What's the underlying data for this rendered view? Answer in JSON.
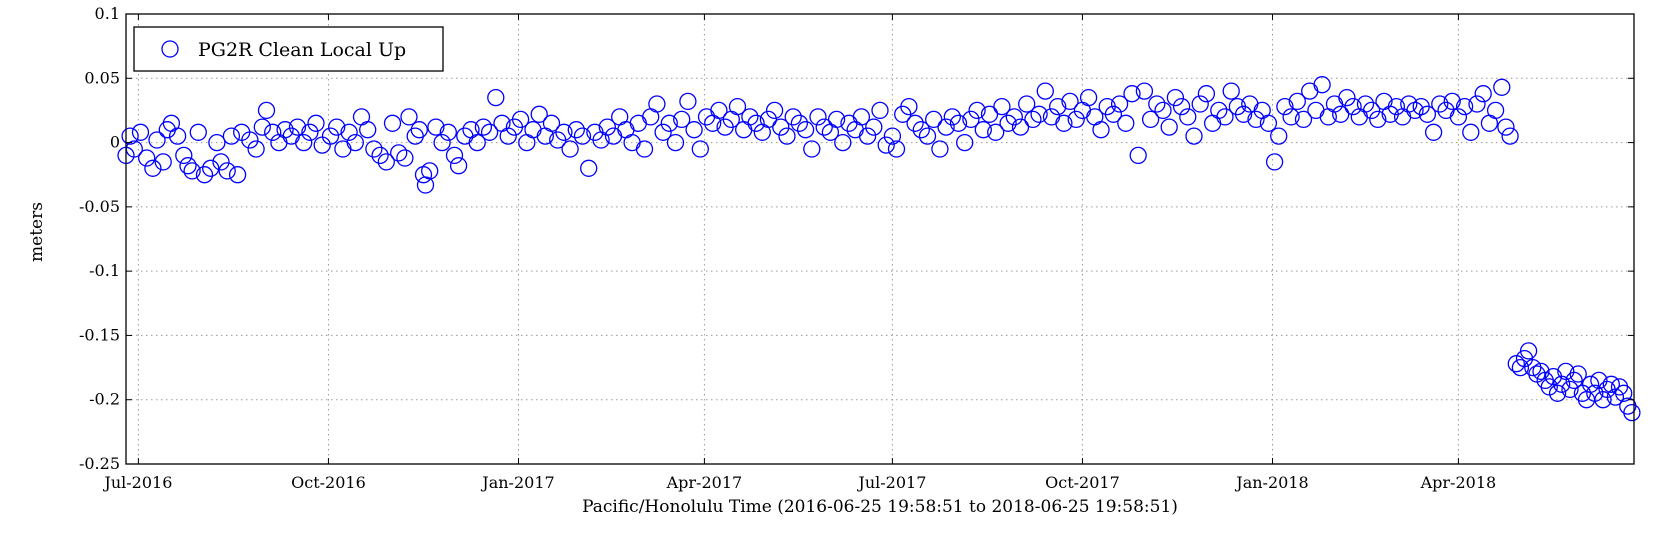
{
  "chart_data": {
    "type": "scatter",
    "title": "",
    "xlabel": "Pacific/Honolulu Time (2016-06-25 19:58:51 to 2018-06-25 19:58:51)",
    "ylabel": "meters",
    "xlim": [
      "2016-06-25",
      "2018-06-25"
    ],
    "ylim": [
      -0.25,
      0.1
    ],
    "x_ticks": [
      "2016-07-01",
      "2016-10-01",
      "2017-01-01",
      "2017-04-01",
      "2017-07-01",
      "2017-10-01",
      "2018-01-01",
      "2018-04-01"
    ],
    "x_tick_labels": [
      "Jul-2016",
      "Oct-2016",
      "Jan-2017",
      "Apr-2017",
      "Jul-2017",
      "Oct-2017",
      "Jan-2018",
      "Apr-2018"
    ],
    "y_ticks": [
      -0.25,
      -0.2,
      -0.15,
      -0.1,
      -0.05,
      0,
      0.05,
      0.1
    ],
    "y_tick_labels": [
      "-0.25",
      "-0.2",
      "-0.15",
      "-0.1",
      "-0.05",
      "0",
      "0.05",
      "0.1"
    ],
    "grid": true,
    "legend": {
      "position": "top-left",
      "entries": [
        "PG2R Clean Local Up"
      ]
    },
    "colors": {
      "series": "#0000ff"
    },
    "series": [
      {
        "name": "PG2R Clean Local Up",
        "marker": "circle-open",
        "points": [
          [
            "2016-06-25",
            -0.01
          ],
          [
            "2016-06-27",
            0.005
          ],
          [
            "2016-06-29",
            -0.005
          ],
          [
            "2016-07-02",
            0.008
          ],
          [
            "2016-07-05",
            -0.012
          ],
          [
            "2016-07-08",
            -0.02
          ],
          [
            "2016-07-10",
            0.002
          ],
          [
            "2016-07-13",
            -0.015
          ],
          [
            "2016-07-15",
            0.01
          ],
          [
            "2016-07-17",
            0.015
          ],
          [
            "2016-07-20",
            0.005
          ],
          [
            "2016-07-23",
            -0.01
          ],
          [
            "2016-07-25",
            -0.018
          ],
          [
            "2016-07-27",
            -0.022
          ],
          [
            "2016-07-30",
            0.008
          ],
          [
            "2016-08-02",
            -0.025
          ],
          [
            "2016-08-05",
            -0.02
          ],
          [
            "2016-08-08",
            0.0
          ],
          [
            "2016-08-10",
            -0.015
          ],
          [
            "2016-08-13",
            -0.022
          ],
          [
            "2016-08-15",
            0.005
          ],
          [
            "2016-08-18",
            -0.025
          ],
          [
            "2016-08-20",
            0.008
          ],
          [
            "2016-08-24",
            0.002
          ],
          [
            "2016-08-27",
            -0.005
          ],
          [
            "2016-08-30",
            0.012
          ],
          [
            "2016-09-01",
            0.025
          ],
          [
            "2016-09-04",
            0.008
          ],
          [
            "2016-09-07",
            0.0
          ],
          [
            "2016-09-10",
            0.01
          ],
          [
            "2016-09-13",
            0.005
          ],
          [
            "2016-09-16",
            0.012
          ],
          [
            "2016-09-19",
            0.0
          ],
          [
            "2016-09-22",
            0.008
          ],
          [
            "2016-09-25",
            0.015
          ],
          [
            "2016-09-28",
            -0.002
          ],
          [
            "2016-10-02",
            0.005
          ],
          [
            "2016-10-05",
            0.012
          ],
          [
            "2016-10-08",
            -0.005
          ],
          [
            "2016-10-11",
            0.008
          ],
          [
            "2016-10-14",
            0.0
          ],
          [
            "2016-10-17",
            0.02
          ],
          [
            "2016-10-20",
            0.01
          ],
          [
            "2016-10-23",
            -0.005
          ],
          [
            "2016-10-26",
            -0.01
          ],
          [
            "2016-10-29",
            -0.015
          ],
          [
            "2016-11-01",
            0.015
          ],
          [
            "2016-11-04",
            -0.008
          ],
          [
            "2016-11-07",
            -0.012
          ],
          [
            "2016-11-09",
            0.02
          ],
          [
            "2016-11-12",
            0.005
          ],
          [
            "2016-11-14",
            0.01
          ],
          [
            "2016-11-16",
            -0.025
          ],
          [
            "2016-11-17",
            -0.033
          ],
          [
            "2016-11-19",
            -0.022
          ],
          [
            "2016-11-22",
            0.012
          ],
          [
            "2016-11-25",
            0.0
          ],
          [
            "2016-11-28",
            0.008
          ],
          [
            "2016-12-01",
            -0.01
          ],
          [
            "2016-12-03",
            -0.018
          ],
          [
            "2016-12-06",
            0.005
          ],
          [
            "2016-12-09",
            0.01
          ],
          [
            "2016-12-12",
            0.0
          ],
          [
            "2016-12-15",
            0.012
          ],
          [
            "2016-12-18",
            0.008
          ],
          [
            "2016-12-21",
            0.035
          ],
          [
            "2016-12-24",
            0.015
          ],
          [
            "2016-12-27",
            0.005
          ],
          [
            "2016-12-30",
            0.012
          ],
          [
            "2017-01-02",
            0.018
          ],
          [
            "2017-01-05",
            0.0
          ],
          [
            "2017-01-08",
            0.01
          ],
          [
            "2017-01-11",
            0.022
          ],
          [
            "2017-01-14",
            0.005
          ],
          [
            "2017-01-17",
            0.015
          ],
          [
            "2017-01-20",
            0.002
          ],
          [
            "2017-01-23",
            0.008
          ],
          [
            "2017-01-26",
            -0.005
          ],
          [
            "2017-01-29",
            0.01
          ],
          [
            "2017-02-01",
            0.005
          ],
          [
            "2017-02-04",
            -0.02
          ],
          [
            "2017-02-07",
            0.008
          ],
          [
            "2017-02-10",
            0.002
          ],
          [
            "2017-02-13",
            0.012
          ],
          [
            "2017-02-16",
            0.005
          ],
          [
            "2017-02-19",
            0.02
          ],
          [
            "2017-02-22",
            0.01
          ],
          [
            "2017-02-25",
            0.0
          ],
          [
            "2017-02-28",
            0.015
          ],
          [
            "2017-03-03",
            -0.005
          ],
          [
            "2017-03-06",
            0.02
          ],
          [
            "2017-03-09",
            0.03
          ],
          [
            "2017-03-12",
            0.008
          ],
          [
            "2017-03-15",
            0.015
          ],
          [
            "2017-03-18",
            0.0
          ],
          [
            "2017-03-21",
            0.018
          ],
          [
            "2017-03-24",
            0.032
          ],
          [
            "2017-03-27",
            0.01
          ],
          [
            "2017-03-30",
            -0.005
          ],
          [
            "2017-04-02",
            0.02
          ],
          [
            "2017-04-05",
            0.015
          ],
          [
            "2017-04-08",
            0.025
          ],
          [
            "2017-04-11",
            0.012
          ],
          [
            "2017-04-14",
            0.018
          ],
          [
            "2017-04-17",
            0.028
          ],
          [
            "2017-04-20",
            0.01
          ],
          [
            "2017-04-23",
            0.02
          ],
          [
            "2017-04-26",
            0.015
          ],
          [
            "2017-04-29",
            0.008
          ],
          [
            "2017-05-02",
            0.018
          ],
          [
            "2017-05-05",
            0.025
          ],
          [
            "2017-05-08",
            0.012
          ],
          [
            "2017-05-11",
            0.005
          ],
          [
            "2017-05-14",
            0.02
          ],
          [
            "2017-05-17",
            0.015
          ],
          [
            "2017-05-20",
            0.01
          ],
          [
            "2017-05-23",
            -0.005
          ],
          [
            "2017-05-26",
            0.02
          ],
          [
            "2017-05-29",
            0.012
          ],
          [
            "2017-06-01",
            0.008
          ],
          [
            "2017-06-04",
            0.018
          ],
          [
            "2017-06-07",
            0.0
          ],
          [
            "2017-06-10",
            0.015
          ],
          [
            "2017-06-13",
            0.01
          ],
          [
            "2017-06-16",
            0.02
          ],
          [
            "2017-06-19",
            0.005
          ],
          [
            "2017-06-22",
            0.012
          ],
          [
            "2017-06-25",
            0.025
          ],
          [
            "2017-06-28",
            -0.002
          ],
          [
            "2017-07-01",
            0.005
          ],
          [
            "2017-07-03",
            -0.005
          ],
          [
            "2017-07-06",
            0.022
          ],
          [
            "2017-07-09",
            0.028
          ],
          [
            "2017-07-12",
            0.015
          ],
          [
            "2017-07-15",
            0.01
          ],
          [
            "2017-07-18",
            0.005
          ],
          [
            "2017-07-21",
            0.018
          ],
          [
            "2017-07-24",
            -0.005
          ],
          [
            "2017-07-27",
            0.012
          ],
          [
            "2017-07-30",
            0.02
          ],
          [
            "2017-08-02",
            0.015
          ],
          [
            "2017-08-05",
            0.0
          ],
          [
            "2017-08-08",
            0.018
          ],
          [
            "2017-08-11",
            0.025
          ],
          [
            "2017-08-14",
            0.01
          ],
          [
            "2017-08-17",
            0.022
          ],
          [
            "2017-08-20",
            0.008
          ],
          [
            "2017-08-23",
            0.028
          ],
          [
            "2017-08-26",
            0.015
          ],
          [
            "2017-08-29",
            0.02
          ],
          [
            "2017-09-01",
            0.012
          ],
          [
            "2017-09-04",
            0.03
          ],
          [
            "2017-09-07",
            0.018
          ],
          [
            "2017-09-10",
            0.022
          ],
          [
            "2017-09-13",
            0.04
          ],
          [
            "2017-09-16",
            0.02
          ],
          [
            "2017-09-19",
            0.028
          ],
          [
            "2017-09-22",
            0.015
          ],
          [
            "2017-09-25",
            0.032
          ],
          [
            "2017-09-28",
            0.018
          ],
          [
            "2017-10-01",
            0.025
          ],
          [
            "2017-10-04",
            0.035
          ],
          [
            "2017-10-07",
            0.02
          ],
          [
            "2017-10-10",
            0.01
          ],
          [
            "2017-10-13",
            0.028
          ],
          [
            "2017-10-16",
            0.022
          ],
          [
            "2017-10-19",
            0.03
          ],
          [
            "2017-10-22",
            0.015
          ],
          [
            "2017-10-25",
            0.038
          ],
          [
            "2017-10-28",
            -0.01
          ],
          [
            "2017-10-31",
            0.04
          ],
          [
            "2017-11-03",
            0.018
          ],
          [
            "2017-11-06",
            0.03
          ],
          [
            "2017-11-09",
            0.025
          ],
          [
            "2017-11-12",
            0.012
          ],
          [
            "2017-11-15",
            0.035
          ],
          [
            "2017-11-18",
            0.028
          ],
          [
            "2017-11-21",
            0.02
          ],
          [
            "2017-11-24",
            0.005
          ],
          [
            "2017-11-27",
            0.03
          ],
          [
            "2017-11-30",
            0.038
          ],
          [
            "2017-12-03",
            0.015
          ],
          [
            "2017-12-06",
            0.025
          ],
          [
            "2017-12-09",
            0.02
          ],
          [
            "2017-12-12",
            0.04
          ],
          [
            "2017-12-15",
            0.028
          ],
          [
            "2017-12-18",
            0.022
          ],
          [
            "2017-12-21",
            0.03
          ],
          [
            "2017-12-24",
            0.018
          ],
          [
            "2017-12-27",
            0.025
          ],
          [
            "2017-12-30",
            0.015
          ],
          [
            "2018-01-02",
            -0.015
          ],
          [
            "2018-01-04",
            0.005
          ],
          [
            "2018-01-07",
            0.028
          ],
          [
            "2018-01-10",
            0.02
          ],
          [
            "2018-01-13",
            0.032
          ],
          [
            "2018-01-16",
            0.018
          ],
          [
            "2018-01-19",
            0.04
          ],
          [
            "2018-01-22",
            0.025
          ],
          [
            "2018-01-25",
            0.045
          ],
          [
            "2018-01-28",
            0.02
          ],
          [
            "2018-01-31",
            0.03
          ],
          [
            "2018-02-03",
            0.022
          ],
          [
            "2018-02-06",
            0.035
          ],
          [
            "2018-02-09",
            0.028
          ],
          [
            "2018-02-12",
            0.02
          ],
          [
            "2018-02-15",
            0.03
          ],
          [
            "2018-02-18",
            0.025
          ],
          [
            "2018-02-21",
            0.018
          ],
          [
            "2018-02-24",
            0.032
          ],
          [
            "2018-02-27",
            0.022
          ],
          [
            "2018-03-02",
            0.028
          ],
          [
            "2018-03-05",
            0.02
          ],
          [
            "2018-03-08",
            0.03
          ],
          [
            "2018-03-11",
            0.025
          ],
          [
            "2018-03-14",
            0.028
          ],
          [
            "2018-03-17",
            0.022
          ],
          [
            "2018-03-20",
            0.008
          ],
          [
            "2018-03-23",
            0.03
          ],
          [
            "2018-03-26",
            0.025
          ],
          [
            "2018-03-29",
            0.032
          ],
          [
            "2018-04-01",
            0.02
          ],
          [
            "2018-04-04",
            0.028
          ],
          [
            "2018-04-07",
            0.008
          ],
          [
            "2018-04-10",
            0.03
          ],
          [
            "2018-04-13",
            0.038
          ],
          [
            "2018-04-16",
            0.015
          ],
          [
            "2018-04-19",
            0.025
          ],
          [
            "2018-04-22",
            0.043
          ],
          [
            "2018-04-24",
            0.012
          ],
          [
            "2018-04-26",
            0.005
          ],
          [
            "2018-04-29",
            -0.172
          ],
          [
            "2018-05-01",
            -0.175
          ],
          [
            "2018-05-03",
            -0.168
          ],
          [
            "2018-05-05",
            -0.162
          ],
          [
            "2018-05-07",
            -0.175
          ],
          [
            "2018-05-09",
            -0.18
          ],
          [
            "2018-05-11",
            -0.178
          ],
          [
            "2018-05-13",
            -0.185
          ],
          [
            "2018-05-15",
            -0.19
          ],
          [
            "2018-05-17",
            -0.182
          ],
          [
            "2018-05-19",
            -0.195
          ],
          [
            "2018-05-21",
            -0.188
          ],
          [
            "2018-05-23",
            -0.178
          ],
          [
            "2018-05-25",
            -0.192
          ],
          [
            "2018-05-27",
            -0.185
          ],
          [
            "2018-05-29",
            -0.18
          ],
          [
            "2018-05-31",
            -0.195
          ],
          [
            "2018-06-02",
            -0.2
          ],
          [
            "2018-06-04",
            -0.188
          ],
          [
            "2018-06-06",
            -0.195
          ],
          [
            "2018-06-08",
            -0.185
          ],
          [
            "2018-06-10",
            -0.2
          ],
          [
            "2018-06-12",
            -0.192
          ],
          [
            "2018-06-14",
            -0.188
          ],
          [
            "2018-06-16",
            -0.198
          ],
          [
            "2018-06-18",
            -0.19
          ],
          [
            "2018-06-20",
            -0.195
          ],
          [
            "2018-06-22",
            -0.205
          ],
          [
            "2018-06-24",
            -0.21
          ]
        ]
      }
    ]
  }
}
